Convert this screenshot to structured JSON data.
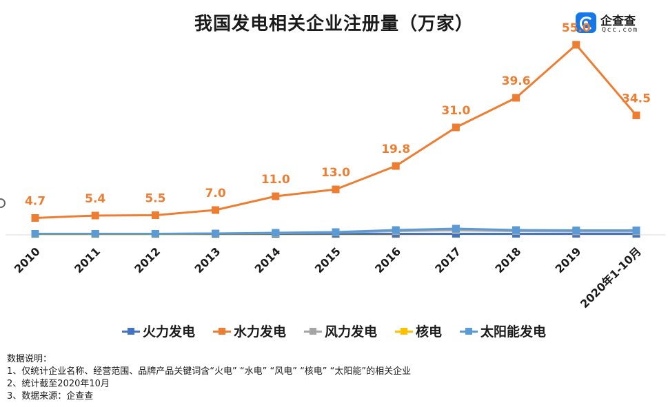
{
  "title": "我国发电相关企业注册量（万家）",
  "logo": {
    "name": "企查查",
    "domain": "Qcc.com"
  },
  "colors": {
    "火力发电": "#4472c4",
    "水力发电": "#ed7d31",
    "风力发电": "#a5a5a5",
    "核电": "#ffc000",
    "太阳能发电": "#5b9bd5"
  },
  "chart_data": {
    "type": "line",
    "title": "我国发电相关企业注册量（万家）",
    "categories": [
      "2010",
      "2011",
      "2012",
      "2013",
      "2014",
      "2015",
      "2016",
      "2017",
      "2018",
      "2019",
      "2020年1-10月"
    ],
    "series": [
      {
        "name": "火力发电",
        "values": [
          0.1,
          0.1,
          0.1,
          0.1,
          0.1,
          0.1,
          0.1,
          0.1,
          0.1,
          0.1,
          0.1
        ]
      },
      {
        "name": "水力发电",
        "values": [
          4.7,
          5.4,
          5.5,
          7.0,
          11.0,
          13.0,
          19.8,
          31.0,
          39.6,
          55.0,
          34.5
        ],
        "data_labels": [
          "4.7",
          "5.4",
          "5.5",
          "7.0",
          "11.0",
          "13.0",
          "19.8",
          "31.0",
          "39.6",
          "55.0",
          "34.5"
        ]
      },
      {
        "name": "风力发电",
        "values": [
          0.1,
          0.1,
          0.1,
          0.2,
          0.3,
          0.5,
          0.9,
          1.1,
          0.9,
          0.8,
          0.8
        ]
      },
      {
        "name": "核电",
        "values": [
          0.0,
          0.0,
          0.0,
          0.0,
          0.0,
          0.0,
          0.0,
          0.1,
          0.1,
          0.1,
          0.1
        ]
      },
      {
        "name": "太阳能发电",
        "values": [
          0.1,
          0.1,
          0.1,
          0.2,
          0.4,
          0.6,
          1.2,
          1.6,
          1.2,
          1.1,
          1.1
        ]
      }
    ],
    "ylim": [
      0,
      60
    ],
    "grid": false,
    "legend_position": "bottom"
  },
  "notes": [
    "数据说明：",
    "1、仅统计企业名称、经营范围、品牌产品关键词含“火电” “水电” “风电” “核电” “太阳能”的相关企业",
    "2、统计截至2020年10月",
    "3、数据来源：企查查"
  ]
}
